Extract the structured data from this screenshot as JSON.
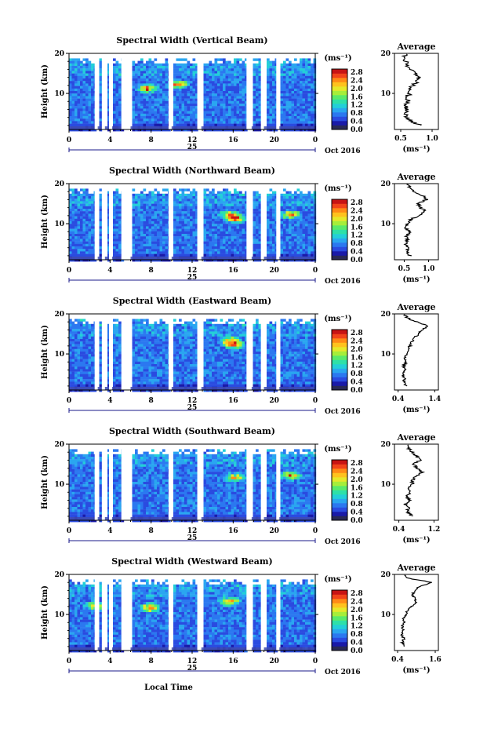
{
  "colors": {
    "scale": [
      "#2a2a55",
      "#1a1aa8",
      "#2a4be0",
      "#2b78f0",
      "#2aa6f0",
      "#23cfd8",
      "#2ee0a8",
      "#5aea6a",
      "#a6ee3a",
      "#e6e82a",
      "#ffc21e",
      "#ff8a16",
      "#f2441a",
      "#c81414"
    ],
    "axis": "#000000",
    "band": "#3f4bb0"
  },
  "footer": {
    "xlabel": "Local Time"
  },
  "chart_data": [
    {
      "type": "heatmap",
      "title": "Spectral Width (Vertical Beam)",
      "ylabel": "Height (km)",
      "yticks": [
        "20",
        "10"
      ],
      "xticks": [
        "0",
        "4",
        "8",
        "12",
        "16",
        "20",
        "0"
      ],
      "day": "25",
      "month": "Oct 2016",
      "colorbar": {
        "label": "(ms⁻¹)",
        "ticks": [
          "2.8",
          "2.4",
          "2.0",
          "1.6",
          "1.2",
          "0.8",
          "0.4",
          "0.0"
        ]
      },
      "gaps_hours": [
        [
          2.5,
          2.8
        ],
        [
          3.2,
          3.5
        ],
        [
          3.9,
          4.2
        ],
        [
          5.1,
          6.0
        ],
        [
          9.7,
          10.0
        ],
        [
          12.5,
          12.9
        ],
        [
          17.3,
          17.8
        ],
        [
          18.7,
          19.0
        ],
        [
          20.2,
          20.5
        ]
      ],
      "hot": [
        [
          7.5,
          11.5
        ],
        [
          10.5,
          12.5
        ]
      ],
      "average": {
        "title": "Average",
        "xlabel": "(ms⁻¹)",
        "xticks": [
          "0.5",
          "1.0"
        ],
        "xlim": [
          0.4,
          1.1
        ],
        "heights": [
          2,
          3,
          4,
          5,
          6,
          7,
          8,
          9,
          10,
          11,
          12,
          13,
          14,
          15,
          16,
          17,
          18,
          19,
          20
        ],
        "values": [
          0.82,
          0.66,
          0.6,
          0.58,
          0.6,
          0.57,
          0.62,
          0.6,
          0.65,
          0.63,
          0.7,
          0.76,
          0.78,
          0.72,
          0.66,
          0.61,
          0.58,
          0.55,
          0.58
        ]
      }
    },
    {
      "type": "heatmap",
      "title": "Spectral Width (Northward Beam)",
      "ylabel": "Height (km)",
      "yticks": [
        "20",
        "10"
      ],
      "xticks": [
        "0",
        "4",
        "8",
        "12",
        "16",
        "20",
        "0"
      ],
      "day": "25",
      "month": "Oct 2016",
      "colorbar": {
        "label": "(ms⁻¹)",
        "ticks": [
          "2.8",
          "2.4",
          "2.0",
          "1.6",
          "1.2",
          "0.8",
          "0.4",
          "0.0"
        ]
      },
      "gaps_hours": [
        [
          2.5,
          2.8
        ],
        [
          3.2,
          3.5
        ],
        [
          3.9,
          4.2
        ],
        [
          5.1,
          6.0
        ],
        [
          9.7,
          10.0
        ],
        [
          12.5,
          12.9
        ],
        [
          17.3,
          17.8
        ],
        [
          18.7,
          19.0
        ],
        [
          20.2,
          20.5
        ]
      ],
      "hot": [
        [
          15.5,
          12.5
        ],
        [
          16.2,
          11.5
        ],
        [
          21.5,
          12.5
        ]
      ],
      "average": {
        "title": "Average",
        "xlabel": "(ms⁻¹)",
        "xticks": [
          "0.5",
          "1.0"
        ],
        "xlim": [
          0.3,
          1.2
        ],
        "heights": [
          2,
          3,
          4,
          5,
          6,
          7,
          8,
          9,
          10,
          11,
          12,
          13,
          14,
          15,
          16,
          17,
          18,
          19,
          20
        ],
        "values": [
          0.62,
          0.55,
          0.58,
          0.52,
          0.57,
          0.55,
          0.6,
          0.54,
          0.58,
          0.62,
          0.8,
          0.92,
          0.85,
          0.78,
          0.95,
          0.88,
          0.72,
          0.62,
          0.55
        ]
      }
    },
    {
      "type": "heatmap",
      "title": "Spectral Width (Eastward Beam)",
      "ylabel": "Height (km)",
      "yticks": [
        "20",
        "10"
      ],
      "xticks": [
        "0",
        "4",
        "8",
        "12",
        "16",
        "20",
        "0"
      ],
      "day": "25",
      "month": "Oct 2016",
      "colorbar": {
        "label": "(ms⁻¹)",
        "ticks": [
          "2.8",
          "2.4",
          "2.0",
          "1.6",
          "1.2",
          "0.8",
          "0.4",
          "0.0"
        ]
      },
      "gaps_hours": [
        [
          2.5,
          2.8
        ],
        [
          3.2,
          3.5
        ],
        [
          3.9,
          4.2
        ],
        [
          5.1,
          6.0
        ],
        [
          9.7,
          10.0
        ],
        [
          12.5,
          12.9
        ],
        [
          17.3,
          17.8
        ],
        [
          18.7,
          19.0
        ],
        [
          20.2,
          20.5
        ]
      ],
      "hot": [
        [
          15.5,
          13.5
        ],
        [
          16.0,
          12.5
        ]
      ],
      "average": {
        "title": "Average",
        "xlabel": "(ms⁻¹)",
        "xticks": [
          "0.4",
          "1.4"
        ],
        "xlim": [
          0.3,
          1.5
        ],
        "heights": [
          2,
          3,
          4,
          5,
          6,
          7,
          8,
          9,
          10,
          11,
          12,
          13,
          14,
          15,
          16,
          17,
          18,
          19,
          20
        ],
        "values": [
          0.62,
          0.55,
          0.58,
          0.52,
          0.6,
          0.55,
          0.62,
          0.56,
          0.64,
          0.66,
          0.72,
          0.78,
          0.85,
          0.95,
          1.05,
          1.2,
          0.9,
          0.65,
          0.55
        ]
      }
    },
    {
      "type": "heatmap",
      "title": "Spectral Width (Southward Beam)",
      "ylabel": "Height (km)",
      "yticks": [
        "20",
        "10"
      ],
      "xticks": [
        "0",
        "4",
        "8",
        "12",
        "16",
        "20",
        "0"
      ],
      "day": "25",
      "month": "Oct 2016",
      "colorbar": {
        "label": "(ms⁻¹)",
        "ticks": [
          "2.8",
          "2.4",
          "2.0",
          "1.6",
          "1.2",
          "0.8",
          "0.4",
          "0.0"
        ]
      },
      "gaps_hours": [
        [
          2.5,
          2.8
        ],
        [
          3.2,
          3.5
        ],
        [
          3.9,
          4.2
        ],
        [
          5.1,
          6.0
        ],
        [
          9.7,
          10.0
        ],
        [
          12.5,
          12.9
        ],
        [
          17.3,
          17.8
        ],
        [
          18.7,
          19.0
        ],
        [
          20.2,
          20.5
        ]
      ],
      "hot": [
        [
          16.0,
          12.0
        ],
        [
          21.5,
          12.5
        ]
      ],
      "average": {
        "title": "Average",
        "xlabel": "(ms⁻¹)",
        "xticks": [
          "0.4",
          "1.2"
        ],
        "xlim": [
          0.3,
          1.3
        ],
        "heights": [
          2,
          3,
          4,
          5,
          6,
          7,
          8,
          9,
          10,
          11,
          12,
          13,
          14,
          15,
          16,
          17,
          18,
          19,
          20
        ],
        "values": [
          0.7,
          0.6,
          0.62,
          0.55,
          0.64,
          0.58,
          0.66,
          0.6,
          0.7,
          0.72,
          0.8,
          0.92,
          0.82,
          0.75,
          0.88,
          0.8,
          0.7,
          0.62,
          0.55
        ]
      }
    },
    {
      "type": "heatmap",
      "title": "Spectral Width (Westward Beam)",
      "ylabel": "Height (km)",
      "yticks": [
        "20",
        "10"
      ],
      "xticks": [
        "0",
        "4",
        "8",
        "12",
        "16",
        "20",
        "0"
      ],
      "day": "25",
      "month": "Oct 2016",
      "colorbar": {
        "label": "(ms⁻¹)",
        "ticks": [
          "2.8",
          "2.4",
          "2.0",
          "1.6",
          "1.2",
          "0.8",
          "0.4",
          "0.0"
        ]
      },
      "gaps_hours": [
        [
          2.5,
          2.8
        ],
        [
          3.2,
          3.5
        ],
        [
          3.9,
          4.2
        ],
        [
          5.1,
          6.0
        ],
        [
          9.7,
          10.0
        ],
        [
          12.5,
          12.9
        ],
        [
          17.3,
          17.8
        ],
        [
          18.7,
          19.0
        ],
        [
          20.2,
          20.5
        ]
      ],
      "hot": [
        [
          7.8,
          12.0
        ],
        [
          2.5,
          12.5
        ],
        [
          15.5,
          13.5
        ]
      ],
      "average": {
        "title": "Average",
        "xlabel": "(ms⁻¹)",
        "xticks": [
          "0.4",
          "1.6"
        ],
        "xlim": [
          0.3,
          1.7
        ],
        "heights": [
          2,
          3,
          4,
          5,
          6,
          7,
          8,
          9,
          10,
          11,
          12,
          13,
          14,
          15,
          16,
          17,
          18,
          19,
          20
        ],
        "values": [
          0.62,
          0.55,
          0.6,
          0.52,
          0.58,
          0.55,
          0.6,
          0.58,
          0.66,
          0.72,
          0.85,
          1.0,
          0.95,
          0.88,
          0.95,
          1.1,
          1.5,
          0.75,
          0.6
        ]
      }
    }
  ]
}
